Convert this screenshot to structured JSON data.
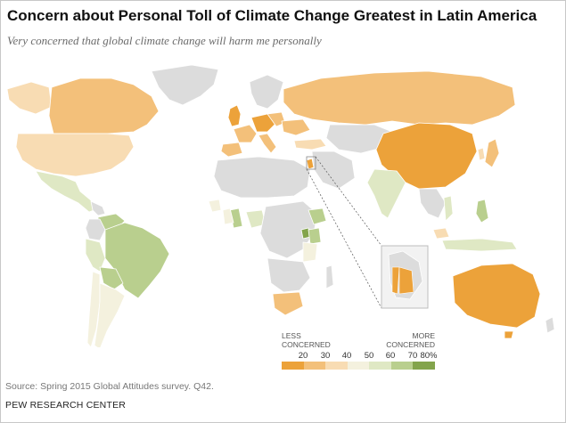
{
  "header": {
    "title": "Concern about Personal Toll of Climate Change Greatest in Latin America",
    "subtitle": "Very concerned that global climate change will harm me personally"
  },
  "legend": {
    "less_label_line1": "LESS",
    "less_label_line2": "CONCERNED",
    "more_label_line1": "MORE",
    "more_label_line2": "CONCERNED",
    "ticks": [
      "20",
      "30",
      "40",
      "50",
      "60",
      "70",
      "80%"
    ],
    "colors": [
      "#eca23a",
      "#f3c07a",
      "#f8dcb3",
      "#f4f1de",
      "#dfe8c4",
      "#b9cf8e",
      "#83a44c"
    ]
  },
  "colors": {
    "no_data": "#dcdcdc",
    "border": "#ffffff",
    "ocean": "#ffffff"
  },
  "footer": {
    "source": "Source: Spring 2015 Global Attitudes survey. Q42.",
    "org": "PEW RESEARCH CENTER"
  }
}
